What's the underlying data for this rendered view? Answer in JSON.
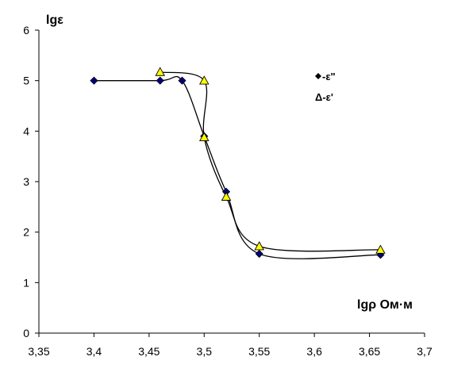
{
  "chart_data": {
    "type": "line",
    "xlabel": "lgρ Ом·м",
    "ylabel": "lgε",
    "xlim": [
      3.35,
      3.7
    ],
    "ylim": [
      0,
      6
    ],
    "x_ticks": [
      "3,35",
      "3,4",
      "3,45",
      "3,5",
      "3,55",
      "3,6",
      "3,65",
      "3,7"
    ],
    "y_ticks": [
      "0",
      "1",
      "2",
      "3",
      "4",
      "5",
      "6"
    ],
    "grid": false,
    "legend_position": "top-right",
    "series": [
      {
        "name": "ε\"",
        "legend_label": "-ε\"",
        "marker": "diamond",
        "color": "#000080",
        "x": [
          3.4,
          3.46,
          3.48,
          3.5,
          3.52,
          3.55,
          3.66
        ],
        "y": [
          5.0,
          5.0,
          5.0,
          3.9,
          2.8,
          1.57,
          1.55
        ]
      },
      {
        "name": "ε'",
        "legend_label": "Δ-ε'",
        "marker": "triangle",
        "color": "#ffff00",
        "x": [
          3.46,
          3.5,
          3.5,
          3.52,
          3.55,
          3.66
        ],
        "y": [
          5.17,
          5.0,
          3.88,
          2.7,
          1.72,
          1.65
        ]
      }
    ]
  }
}
